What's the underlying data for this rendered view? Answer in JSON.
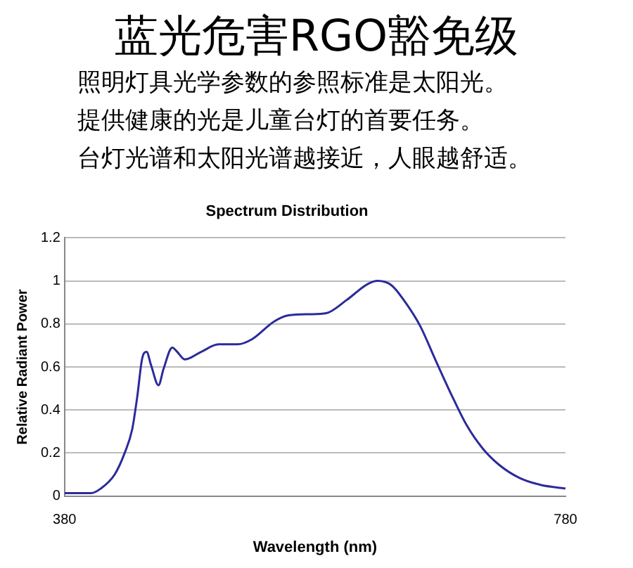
{
  "chart_data": {
    "type": "line",
    "title": "蓝光危害RGO豁免级",
    "subtitle": "Spectrum Distribution",
    "annotations": [
      "照明灯具光学参数的参照标准是太阳光。",
      "提供健康的光是儿童台灯的首要任务。",
      "台灯光谱和太阳光谱越接近，人眼越舒适。"
    ],
    "xlabel": "Wavelength (nm)",
    "ylabel": "Relative Radiant Power",
    "series": [
      {
        "color": "#2b2b9b",
        "x": [
          380,
          401,
          409,
          420,
          428,
          434,
          438,
          442,
          445.5,
          449,
          455,
          459,
          466,
          470,
          476,
          489,
          503,
          518,
          530,
          547,
          559,
          576,
          589,
          605,
          622,
          630,
          641,
          651,
          664,
          676,
          689,
          701,
          714,
          727,
          743,
          760,
          780
        ],
        "values": [
          0.013,
          0.013,
          0.035,
          0.1,
          0.2,
          0.31,
          0.46,
          0.64,
          0.67,
          0.61,
          0.515,
          0.59,
          0.69,
          0.67,
          0.635,
          0.67,
          0.705,
          0.705,
          0.73,
          0.81,
          0.84,
          0.845,
          0.85,
          0.91,
          0.985,
          1.0,
          0.98,
          0.91,
          0.79,
          0.635,
          0.47,
          0.33,
          0.22,
          0.145,
          0.085,
          0.052,
          0.035
        ]
      }
    ],
    "xlim": [
      380,
      780
    ],
    "xticks": [
      380,
      780
    ],
    "ylim": [
      0,
      1.2
    ],
    "yticks": [
      0,
      0.2,
      0.4,
      0.6,
      0.8,
      1,
      1.2
    ],
    "grid": "y",
    "marker": "none",
    "line_style": "solid"
  }
}
